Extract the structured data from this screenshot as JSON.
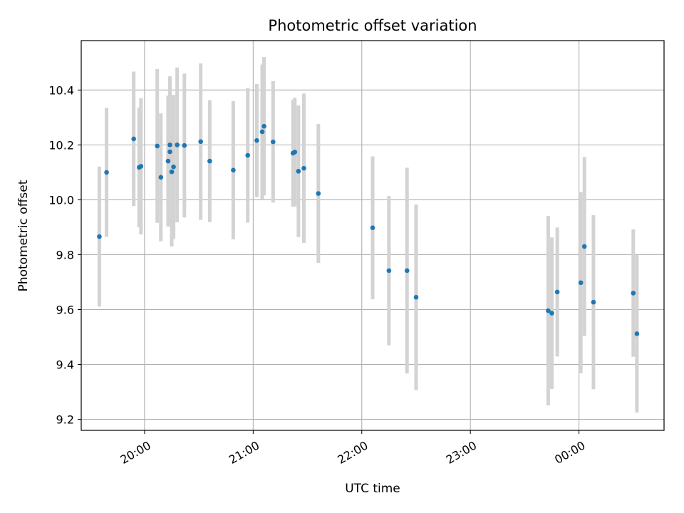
{
  "chart_data": {
    "type": "scatter",
    "title": "Photometric offset variation",
    "xlabel": "UTC time",
    "ylabel": "Photometric offset",
    "x_unit": "UTC time (hours; 24+ means after midnight)",
    "xlim": [
      "19:25",
      "00:47"
    ],
    "ylim": [
      9.16,
      10.58
    ],
    "x_ticks": [
      {
        "value": "20:00",
        "label": "20:00"
      },
      {
        "value": "21:00",
        "label": "21:00"
      },
      {
        "value": "22:00",
        "label": "22:00"
      },
      {
        "value": "23:00",
        "label": "23:00"
      },
      {
        "value": "00:00",
        "label": "00:00"
      }
    ],
    "y_ticks": [
      {
        "value": 9.2,
        "label": "9.2"
      },
      {
        "value": 9.4,
        "label": "9.4"
      },
      {
        "value": 9.6,
        "label": "9.6"
      },
      {
        "value": 9.8,
        "label": "9.8"
      },
      {
        "value": 10.0,
        "label": "10.0"
      },
      {
        "value": 10.2,
        "label": "10.2"
      },
      {
        "value": 10.4,
        "label": "10.4"
      }
    ],
    "grid": true,
    "point_color": "#1f77b4",
    "errorbar_color": "#d3d3d3",
    "points": [
      {
        "x": "19:35",
        "y": 9.866,
        "err": 0.255
      },
      {
        "x": "19:39",
        "y": 10.1,
        "err": 0.235
      },
      {
        "x": "19:54",
        "y": 10.222,
        "err": 0.245
      },
      {
        "x": "19:57",
        "y": 10.118,
        "err": 0.218
      },
      {
        "x": "19:58",
        "y": 10.122,
        "err": 0.248
      },
      {
        "x": "20:07",
        "y": 10.196,
        "err": 0.28
      },
      {
        "x": "20:09",
        "y": 10.082,
        "err": 0.233
      },
      {
        "x": "20:13",
        "y": 10.141,
        "err": 0.238
      },
      {
        "x": "20:14",
        "y": 10.175,
        "err": 0.27
      },
      {
        "x": "20:14",
        "y": 10.2,
        "err": 0.25
      },
      {
        "x": "20:15",
        "y": 10.102,
        "err": 0.272
      },
      {
        "x": "20:16",
        "y": 10.12,
        "err": 0.262
      },
      {
        "x": "20:18",
        "y": 10.2,
        "err": 0.282
      },
      {
        "x": "20:22",
        "y": 10.198,
        "err": 0.262
      },
      {
        "x": "20:31",
        "y": 10.212,
        "err": 0.285
      },
      {
        "x": "20:36",
        "y": 10.141,
        "err": 0.222
      },
      {
        "x": "20:49",
        "y": 10.108,
        "err": 0.252
      },
      {
        "x": "20:57",
        "y": 10.162,
        "err": 0.245
      },
      {
        "x": "21:02",
        "y": 10.216,
        "err": 0.206
      },
      {
        "x": "21:05",
        "y": 10.248,
        "err": 0.245
      },
      {
        "x": "21:06",
        "y": 10.268,
        "err": 0.252
      },
      {
        "x": "21:11",
        "y": 10.211,
        "err": 0.221
      },
      {
        "x": "21:22",
        "y": 10.17,
        "err": 0.195
      },
      {
        "x": "21:23",
        "y": 10.174,
        "err": 0.198
      },
      {
        "x": "21:25",
        "y": 10.104,
        "err": 0.24
      },
      {
        "x": "21:28",
        "y": 10.115,
        "err": 0.272
      },
      {
        "x": "21:36",
        "y": 10.023,
        "err": 0.253
      },
      {
        "x": "22:06",
        "y": 9.898,
        "err": 0.26
      },
      {
        "x": "22:15",
        "y": 9.742,
        "err": 0.272
      },
      {
        "x": "22:25",
        "y": 9.742,
        "err": 0.375
      },
      {
        "x": "22:30",
        "y": 9.645,
        "err": 0.338
      },
      {
        "x": "23:43",
        "y": 9.596,
        "err": 0.345
      },
      {
        "x": "23:45",
        "y": 9.587,
        "err": 0.276
      },
      {
        "x": "23:48",
        "y": 9.664,
        "err": 0.235
      },
      {
        "x": "00:01",
        "y": 9.698,
        "err": 0.33
      },
      {
        "x": "00:03",
        "y": 9.83,
        "err": 0.326
      },
      {
        "x": "00:08",
        "y": 9.627,
        "err": 0.317
      },
      {
        "x": "00:30",
        "y": 9.66,
        "err": 0.232
      },
      {
        "x": "00:32",
        "y": 9.512,
        "err": 0.287
      }
    ]
  }
}
